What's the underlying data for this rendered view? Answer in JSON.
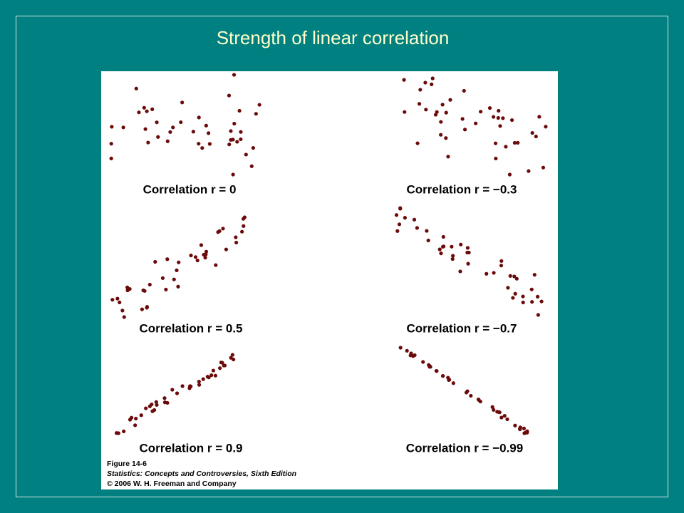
{
  "slide": {
    "title": "Strength of linear correlation",
    "figure": {
      "panels": [
        {
          "label": "Correlation r = 0"
        },
        {
          "label": "Correlation r = −0.3"
        },
        {
          "label": "Correlation r = 0.5"
        },
        {
          "label": "Correlation r = −0.7"
        },
        {
          "label": "Correlation r = 0.9"
        },
        {
          "label": "Correlation r = −0.99"
        }
      ],
      "caption": [
        "Figure 14-6",
        "Statistics: Concepts and Controversies, Sixth Edition",
        "© 2006 W. H. Freeman and Company"
      ]
    }
  }
}
